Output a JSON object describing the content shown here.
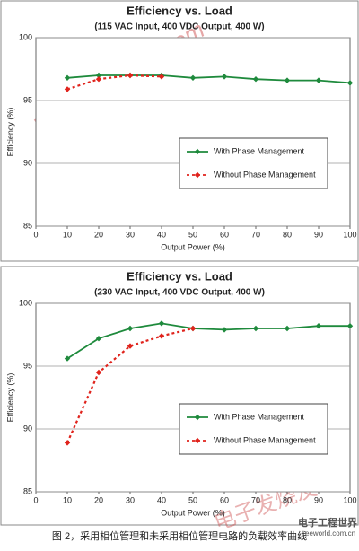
{
  "chart_data": [
    {
      "type": "line",
      "title": "Efficiency vs. Load",
      "subtitle": "(115 VAC Input, 400 VDC Output, 400 W)",
      "x_label": "Output Power (%)",
      "y_label": "Efficiency (%)",
      "x": [
        10,
        20,
        30,
        40,
        50,
        60,
        70,
        80,
        90,
        100
      ],
      "series": [
        {
          "name": "With Phase Management",
          "color": "#1e8a3c",
          "dashed": false,
          "values": [
            96.8,
            97.0,
            97.0,
            97.0,
            96.8,
            96.9,
            96.7,
            96.6,
            96.6,
            96.4
          ]
        },
        {
          "name": "Without Phase Management",
          "color": "#e0231c",
          "dashed": true,
          "values": [
            95.9,
            96.7,
            97.0,
            96.9,
            null,
            null,
            null,
            null,
            null,
            null
          ]
        }
      ],
      "xlim": [
        0,
        100
      ],
      "xticks": [
        0,
        10,
        20,
        30,
        40,
        50,
        60,
        70,
        80,
        90,
        100
      ],
      "ylim": [
        85,
        100
      ],
      "yticks": [
        85,
        90,
        95,
        100
      ],
      "grid": true
    },
    {
      "type": "line",
      "title": "Efficiency vs. Load",
      "subtitle": "(230 VAC Input, 400 VDC Output, 400 W)",
      "x_label": "Output Power (%)",
      "y_label": "Efficiency (%)",
      "x": [
        10,
        20,
        30,
        40,
        50,
        60,
        70,
        80,
        90,
        100
      ],
      "series": [
        {
          "name": "With Phase Management",
          "color": "#1e8a3c",
          "dashed": false,
          "values": [
            95.6,
            97.2,
            98.0,
            98.4,
            98.0,
            97.9,
            98.0,
            98.0,
            98.2,
            98.2
          ]
        },
        {
          "name": "Without Phase Management",
          "color": "#e0231c",
          "dashed": true,
          "values": [
            88.9,
            94.5,
            96.6,
            97.4,
            98.0,
            null,
            null,
            null,
            null,
            null
          ]
        }
      ],
      "xlim": [
        0,
        100
      ],
      "xticks": [
        0,
        10,
        20,
        30,
        40,
        50,
        60,
        70,
        80,
        90,
        100
      ],
      "ylim": [
        85,
        100
      ],
      "yticks": [
        85,
        90,
        95,
        100
      ],
      "grid": true
    }
  ],
  "caption": "图 2，采用相位管理和未采用相位管理电路的负载效率曲线",
  "watermarks": [
    "www.elecfans.com",
    "电子发烧友",
    "电子工程世界",
    "eeworld.com.cn"
  ]
}
